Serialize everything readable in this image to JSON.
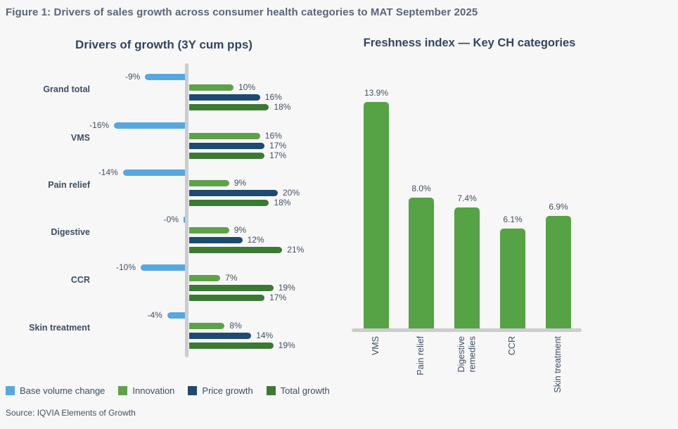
{
  "figure_title": "Figure 1: Drivers of sales growth across consumer health categories to MAT September 2025",
  "source": "Source: IQVIA Elements of Growth",
  "colors": {
    "base_volume_change": "#55a8df",
    "innovation": "#5da249",
    "price_growth": "#1e4a72",
    "total_growth": "#3b7a33",
    "freshness_bar": "#55a344",
    "axis": "#cbcccd",
    "heading": "#33465f",
    "value_label": "#445060"
  },
  "legend": {
    "items": [
      {
        "label": "Base volume change",
        "color": "#55a8df"
      },
      {
        "label": "Innovation",
        "color": "#5da249"
      },
      {
        "label": "Price growth",
        "color": "#1e4a72"
      },
      {
        "label": "Total growth",
        "color": "#3b7a33"
      }
    ]
  },
  "chart_data": [
    {
      "type": "bar",
      "orientation": "horizontal",
      "title": "Drivers of growth (3Y cum pps)",
      "unit": "percentage points (%)",
      "categories": [
        "Grand total",
        "VMS",
        "Pain relief",
        "Digestive",
        "CCR",
        "Skin treatment"
      ],
      "series": [
        {
          "name": "Base volume change",
          "color": "#55a8df",
          "values": [
            -9,
            -16,
            -14,
            0,
            -10,
            -4
          ],
          "labels": [
            "-9%",
            "-16%",
            "-14%",
            "-0%",
            "-10%",
            "-4%"
          ]
        },
        {
          "name": "Innovation",
          "color": "#5da249",
          "values": [
            10,
            16,
            9,
            9,
            7,
            8
          ],
          "labels": [
            "10%",
            "16%",
            "9%",
            "9%",
            "7%",
            "8%"
          ]
        },
        {
          "name": "Price growth",
          "color": "#1e4a72",
          "values": [
            16,
            17,
            20,
            12,
            19,
            14
          ],
          "labels": [
            "16%",
            "17%",
            "20%",
            "12%",
            "19%",
            "14%"
          ],
          "bar_color_overrides": {
            "4": "#3b7a33"
          }
        },
        {
          "name": "Total growth",
          "color": "#3b7a33",
          "values": [
            18,
            17,
            18,
            21,
            17,
            19
          ],
          "labels": [
            "18%",
            "17%",
            "18%",
            "21%",
            "17%",
            "19%"
          ]
        }
      ],
      "legend_position": "bottom",
      "grid": false
    },
    {
      "type": "bar",
      "orientation": "vertical",
      "title": "Freshness index — Key CH categories",
      "categories": [
        "VMS",
        "Pain relief",
        "Digestive\nremedies",
        "CCR",
        "Skin treatment"
      ],
      "values": [
        13.9,
        8.0,
        7.4,
        6.1,
        6.9
      ],
      "labels": [
        "13.9%",
        "8.0%",
        "7.4%",
        "6.1%",
        "6.9%"
      ],
      "bar_color": "#55a344",
      "ylim": [
        0,
        15
      ],
      "grid": false
    }
  ]
}
